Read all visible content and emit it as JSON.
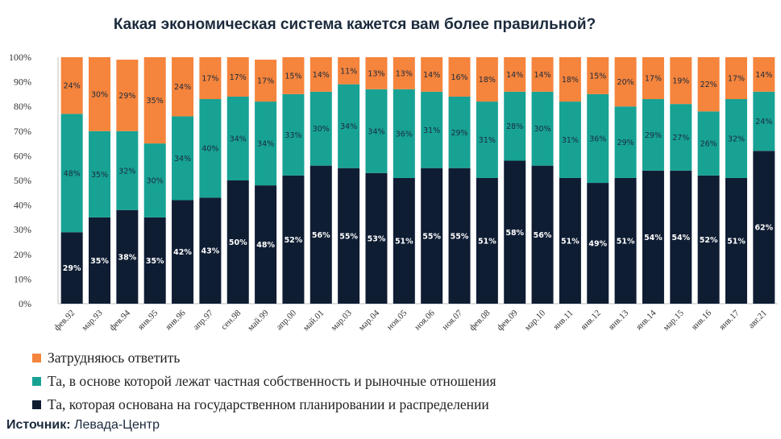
{
  "chart_data": {
    "type": "bar",
    "stacked": true,
    "title": "Какая экономическая система кажется вам более правильной?",
    "categories": [
      "фев.92",
      "мар.93",
      "фев.94",
      "янв.95",
      "янв.96",
      "апр.97",
      "сен.98",
      "май.99",
      "апр.00",
      "май.01",
      "мар.03",
      "мар.04",
      "ноя.05",
      "ноя.06",
      "ноя.07",
      "фев.08",
      "фев.09",
      "мар.10",
      "янв.11",
      "янв.12",
      "янв.13",
      "янв.14",
      "мар.15",
      "янв.16",
      "янв.17",
      "авг.21"
    ],
    "ylim": [
      0,
      100
    ],
    "yticks": [
      "0%",
      "10%",
      "20%",
      "30%",
      "40%",
      "50%",
      "60%",
      "70%",
      "80%",
      "90%",
      "100%"
    ],
    "series": [
      {
        "name": "Та, которая основана на государственном планировании и распределении",
        "color": "#0f1d33",
        "values": [
          29,
          35,
          38,
          35,
          42,
          43,
          50,
          48,
          52,
          56,
          55,
          53,
          51,
          55,
          55,
          51,
          58,
          56,
          51,
          49,
          51,
          54,
          54,
          52,
          51,
          62
        ]
      },
      {
        "name": "Та, в основе которой лежат частная собственность и рыночные отношения",
        "color": "#17a294",
        "values": [
          48,
          35,
          32,
          30,
          34,
          40,
          34,
          34,
          33,
          30,
          34,
          34,
          36,
          31,
          29,
          31,
          28,
          30,
          31,
          36,
          29,
          29,
          27,
          26,
          32,
          24
        ]
      },
      {
        "name": "Затрудняюсь ответить",
        "color": "#f5843c",
        "values": [
          24,
          30,
          29,
          35,
          24,
          17,
          17,
          17,
          15,
          14,
          11,
          13,
          13,
          14,
          16,
          18,
          14,
          14,
          18,
          15,
          20,
          17,
          19,
          22,
          17,
          14
        ]
      }
    ],
    "legend_order": [
      2,
      1,
      0
    ]
  },
  "source": {
    "label": "Источник:",
    "value": "Левада-Центр"
  }
}
